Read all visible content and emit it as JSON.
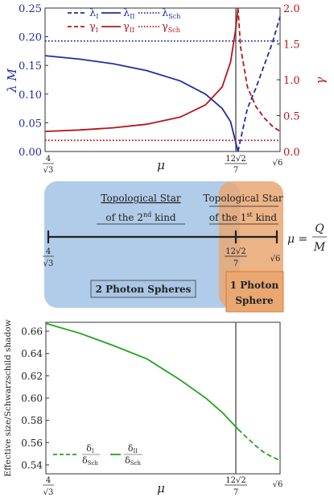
{
  "colors": {
    "blue": "#1f2f9e",
    "red": "#b5161b",
    "green": "#1fa51f",
    "blue_region": "#a9c6e6",
    "orange_region": "#e9a772",
    "orange_border": "#e07a2c",
    "axis": "#333333",
    "vline": "#555555"
  },
  "panel_top": {
    "left_axis": {
      "label": "λ M",
      "ticks": [
        "0.00",
        "0.05",
        "0.10",
        "0.15",
        "0.20",
        "0.25"
      ]
    },
    "right_axis": {
      "label": "γ",
      "ticks": [
        "0.0",
        "0.5",
        "1.0",
        "1.5",
        "2.0"
      ]
    },
    "x_axis": {
      "label": "μ",
      "tick_4_num": "4",
      "tick_4_den": "√3",
      "tick_mid_num": "12√2",
      "tick_mid_den": "7",
      "tick_end": "√6"
    },
    "legend": {
      "lambda_I": "λ",
      "lambda_I_sub": "I",
      "lambda_II": "λ",
      "lambda_II_sub": "II",
      "lambda_Sch": "λ",
      "lambda_Sch_sub": "Sch",
      "gamma_I": "γ",
      "gamma_I_sub": "I",
      "gamma_II": "γ",
      "gamma_II_sub": "II",
      "gamma_Sch": "γ",
      "gamma_Sch_sub": "Sch"
    }
  },
  "panel_mid": {
    "star2_line1": "Topological Star",
    "star2_line2": "of the 2",
    "star2_sup": "nd",
    "star2_end": " kind",
    "star1_line1": "Topological Star",
    "star1_line2": "of the 1",
    "star1_sup": "st",
    "star1_end": " kind",
    "mu_label": "μ =",
    "frac_num": "Q",
    "frac_den": "M",
    "tick_4_num": "4",
    "tick_4_den": "√3",
    "tick_mid_num": "12√2",
    "tick_mid_den": "7",
    "tick_end": "√6",
    "box2": "2 Photon Spheres",
    "box1_line1": "1 Photon",
    "box1_line2": "Sphere"
  },
  "panel_bottom": {
    "y_axis_label": "Effective size/Schwarzschild shadow",
    "y_ticks": [
      "0.54",
      "0.56",
      "0.58",
      "0.60",
      "0.62",
      "0.64",
      "0.66"
    ],
    "x_axis": {
      "label": "μ",
      "tick_4_num": "4",
      "tick_4_den": "√3",
      "tick_mid_num": "12√2",
      "tick_mid_den": "7",
      "tick_end": "√6"
    },
    "legend": {
      "d1_num": "δ",
      "d1_num_sub": "I",
      "d1_den": "δ",
      "d1_den_sub": "Sch",
      "d2_num": "δ",
      "d2_num_sub": "II",
      "d2_den": "δ",
      "d2_den_sub": "Sch"
    }
  },
  "chart_data": [
    {
      "type": "line",
      "x_domain": [
        2.3094,
        2.4495
      ],
      "x_marks": [
        2.3094,
        2.4244,
        2.4495
      ],
      "ylim_left": [
        0,
        0.25
      ],
      "ylim_right": [
        0,
        2.0
      ],
      "xlabel": "μ",
      "ylabel_left": "λ M",
      "ylabel_right": "γ",
      "series": [
        {
          "name": "λI",
          "axis": "left",
          "style": "dashed",
          "color": "blue",
          "x": [
            2.4244,
            2.43,
            2.435,
            2.44,
            2.445,
            2.4495
          ],
          "y": [
            0.0,
            0.075,
            0.11,
            0.15,
            0.19,
            0.235
          ]
        },
        {
          "name": "λII",
          "axis": "left",
          "style": "solid",
          "color": "blue",
          "x": [
            2.3094,
            2.33,
            2.35,
            2.37,
            2.39,
            2.405,
            2.415,
            2.42,
            2.4244
          ],
          "y": [
            0.167,
            0.161,
            0.153,
            0.141,
            0.123,
            0.1,
            0.075,
            0.052,
            0.0
          ]
        },
        {
          "name": "λSch",
          "axis": "left",
          "style": "dotted",
          "color": "blue",
          "x": [
            2.3094,
            2.4495
          ],
          "y": [
            0.1925,
            0.1925
          ]
        },
        {
          "name": "γI",
          "axis": "right",
          "style": "dashed",
          "color": "red",
          "x": [
            2.4244,
            2.426,
            2.43,
            2.435,
            2.44,
            2.445,
            2.4495
          ],
          "y": [
            2.0,
            1.45,
            0.9,
            0.63,
            0.47,
            0.35,
            0.28
          ]
        },
        {
          "name": "γII",
          "axis": "right",
          "style": "solid",
          "color": "red",
          "x": [
            2.3094,
            2.33,
            2.35,
            2.37,
            2.39,
            2.405,
            2.415,
            2.42,
            2.423,
            2.4244
          ],
          "y": [
            0.28,
            0.3,
            0.33,
            0.38,
            0.48,
            0.65,
            0.9,
            1.25,
            1.7,
            2.0
          ]
        },
        {
          "name": "γSch",
          "axis": "right",
          "style": "dotted",
          "color": "red",
          "x": [
            2.3094,
            2.4495
          ],
          "y": [
            0.155,
            0.155
          ]
        }
      ]
    },
    {
      "type": "line",
      "x_domain": [
        2.3094,
        2.4495
      ],
      "x_marks": [
        2.3094,
        2.4244,
        2.4495
      ],
      "ylim": [
        0.532,
        0.668
      ],
      "xlabel": "μ",
      "ylabel": "Effective size/Schwarzschild shadow",
      "series": [
        {
          "name": "δI/δSch",
          "style": "dashed",
          "color": "green",
          "x": [
            2.4244,
            2.43,
            2.435,
            2.44,
            2.445,
            2.4495
          ],
          "y": [
            0.572,
            0.564,
            0.557,
            0.551,
            0.547,
            0.544
          ]
        },
        {
          "name": "δII/δSch",
          "style": "solid",
          "color": "green",
          "x": [
            2.3094,
            2.33,
            2.35,
            2.37,
            2.39,
            2.405,
            2.415,
            2.4244
          ],
          "y": [
            0.667,
            0.658,
            0.647,
            0.635,
            0.616,
            0.6,
            0.587,
            0.572
          ]
        }
      ]
    }
  ]
}
